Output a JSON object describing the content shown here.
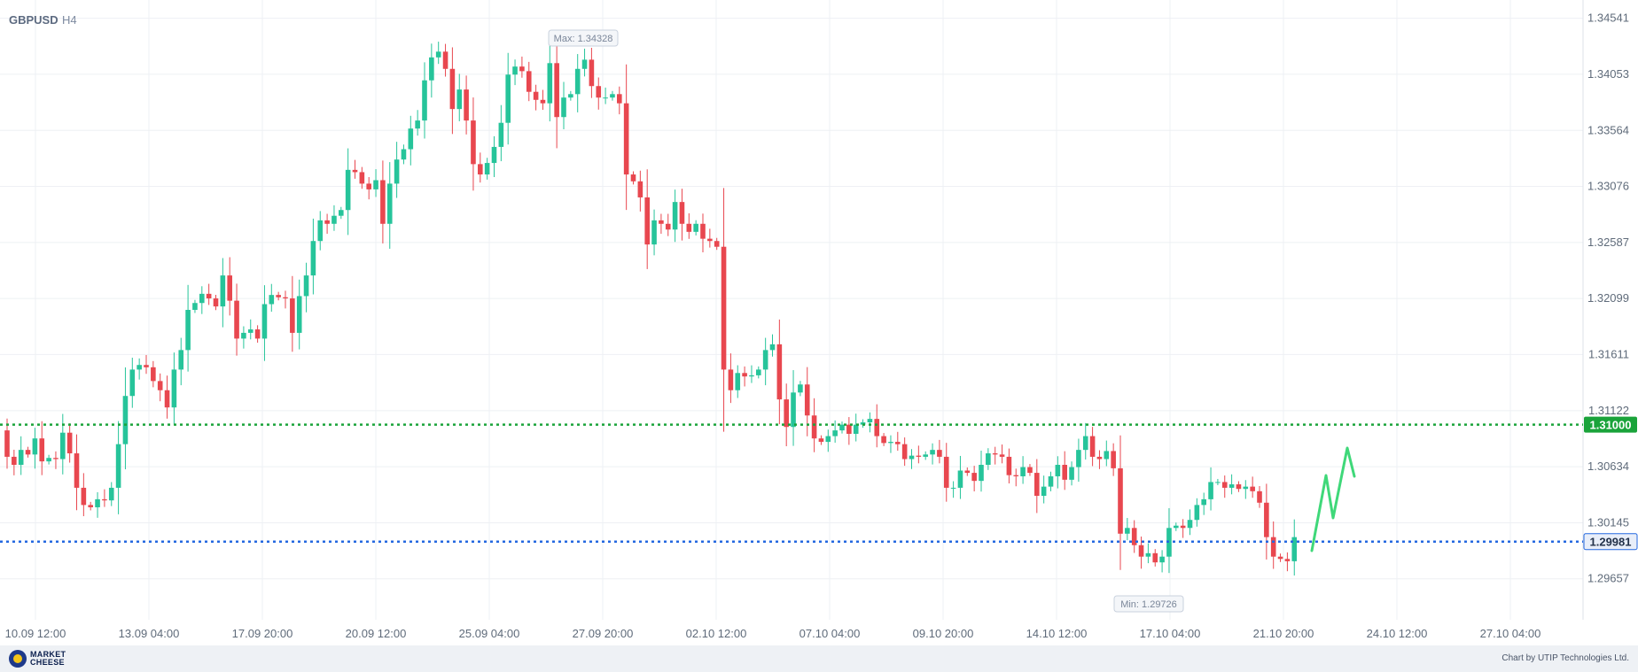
{
  "header": {
    "symbol": "GBPUSD",
    "timeframe": "H4"
  },
  "footer": {
    "brand_line1": "MARKET",
    "brand_line2": "CHEESE",
    "credit": "Chart by UTIP Technologies Ltd."
  },
  "colors": {
    "up": "#26c49a",
    "down": "#e8474f",
    "resistance": "#1aa33a",
    "support": "#2468e0",
    "projection": "#3fd879",
    "grid": "#eef0f4"
  },
  "chart_data": {
    "type": "candlestick",
    "ylim": [
      1.293,
      1.347
    ],
    "y_ticks": [
      "1.34541",
      "1.34053",
      "1.33564",
      "1.33076",
      "1.32587",
      "1.32099",
      "1.31611",
      "1.31122",
      "1.30634",
      "1.30145",
      "1.29657"
    ],
    "x_ticks": [
      "10.09 12:00",
      "13.09 04:00",
      "17.09 20:00",
      "20.09 12:00",
      "25.09 04:00",
      "27.09 20:00",
      "02.10 12:00",
      "07.10 04:00",
      "09.10 20:00",
      "14.10 12:00",
      "17.10 04:00",
      "21.10 20:00",
      "24.10 12:00",
      "27.10 04:00"
    ],
    "levels": [
      {
        "name": "resistance",
        "value": 1.31,
        "label": "1.31000"
      },
      {
        "name": "current",
        "value": 1.29981,
        "label": "1.29981"
      }
    ],
    "annotations": {
      "max": "Max: 1.34328",
      "min": "Min: 1.29726"
    },
    "close": [
      1.3072,
      1.3065,
      1.3078,
      1.3074,
      1.3088,
      1.3068,
      1.3071,
      1.307,
      1.3093,
      1.3075,
      1.3045,
      1.303,
      1.3028,
      1.3035,
      1.3034,
      1.3045,
      1.3083,
      1.3125,
      1.3148,
      1.3152,
      1.315,
      1.3138,
      1.313,
      1.3115,
      1.3148,
      1.3165,
      1.32,
      1.3206,
      1.3214,
      1.321,
      1.3203,
      1.323,
      1.3208,
      1.3175,
      1.318,
      1.3183,
      1.3175,
      1.3205,
      1.3213,
      1.3211,
      1.321,
      1.318,
      1.3212,
      1.323,
      1.326,
      1.3278,
      1.3275,
      1.3282,
      1.3287,
      1.3322,
      1.332,
      1.331,
      1.3305,
      1.3313,
      1.3275,
      1.331,
      1.3331,
      1.334,
      1.3358,
      1.3365,
      1.34,
      1.342,
      1.3425,
      1.341,
      1.3375,
      1.3392,
      1.3365,
      1.3327,
      1.3318,
      1.3328,
      1.3342,
      1.3363,
      1.3405,
      1.3412,
      1.3408,
      1.339,
      1.3383,
      1.338,
      1.3415,
      1.3368,
      1.3385,
      1.3388,
      1.341,
      1.3418,
      1.3395,
      1.3385,
      1.3385,
      1.3388,
      1.338,
      1.3318,
      1.3312,
      1.3298,
      1.3257,
      1.3278,
      1.3275,
      1.327,
      1.3294,
      1.3275,
      1.3268,
      1.3275,
      1.3262,
      1.326,
      1.3255,
      1.3148,
      1.313,
      1.3145,
      1.3142,
      1.3143,
      1.3148,
      1.3165,
      1.317,
      1.3122,
      1.3098,
      1.3128,
      1.3135,
      1.3108,
      1.3088,
      1.3085,
      1.309,
      1.3095,
      1.31,
      1.3092,
      1.31,
      1.3102,
      1.3105,
      1.309,
      1.3084,
      1.3085,
      1.3083,
      1.307,
      1.3073,
      1.3072,
      1.3074,
      1.3078,
      1.3072,
      1.3045,
      1.3045,
      1.306,
      1.3058,
      1.3051,
      1.3065,
      1.3075,
      1.3074,
      1.3072,
      1.3056,
      1.3055,
      1.3063,
      1.3058,
      1.3038,
      1.3046,
      1.3055,
      1.3065,
      1.3052,
      1.3063,
      1.3078,
      1.309,
      1.3072,
      1.307,
      1.3077,
      1.3062,
      1.3005,
      1.301,
      1.2995,
      1.2985,
      1.2988,
      1.298,
      1.2985,
      1.301,
      1.3012,
      1.301,
      1.3017,
      1.303,
      1.3035,
      1.305,
      1.305,
      1.3045,
      1.3048,
      1.3044,
      1.3046,
      1.3042,
      1.3032,
      1.3002,
      1.2985,
      1.2983,
      1.2981,
      1.3002
    ]
  }
}
